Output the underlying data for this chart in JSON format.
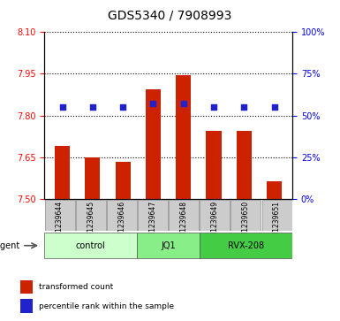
{
  "title": "GDS5340 / 7908993",
  "samples": [
    "GSM1239644",
    "GSM1239645",
    "GSM1239646",
    "GSM1239647",
    "GSM1239648",
    "GSM1239649",
    "GSM1239650",
    "GSM1239651"
  ],
  "groups": [
    {
      "name": "control",
      "indices": [
        0,
        1,
        2
      ],
      "color": "#ccffcc"
    },
    {
      "name": "JQ1",
      "indices": [
        3,
        4
      ],
      "color": "#88ee88"
    },
    {
      "name": "RVX-208",
      "indices": [
        5,
        6,
        7
      ],
      "color": "#44cc44"
    }
  ],
  "transformed_count": [
    7.69,
    7.65,
    7.635,
    7.895,
    7.945,
    7.745,
    7.745,
    7.565
  ],
  "percentile_rank": [
    55,
    55,
    55,
    57,
    57,
    55,
    55,
    55
  ],
  "ymin": 7.5,
  "ymax": 8.1,
  "yticks_left": [
    7.5,
    7.65,
    7.8,
    7.95,
    8.1
  ],
  "yticks_right": [
    0,
    25,
    50,
    75,
    100
  ],
  "bar_color": "#cc2200",
  "dot_color": "#2222cc",
  "bar_width": 0.5,
  "agent_label": "agent",
  "legend_bar": "transformed count",
  "legend_dot": "percentile rank within the sample",
  "percentile_min": 0,
  "percentile_max": 100
}
